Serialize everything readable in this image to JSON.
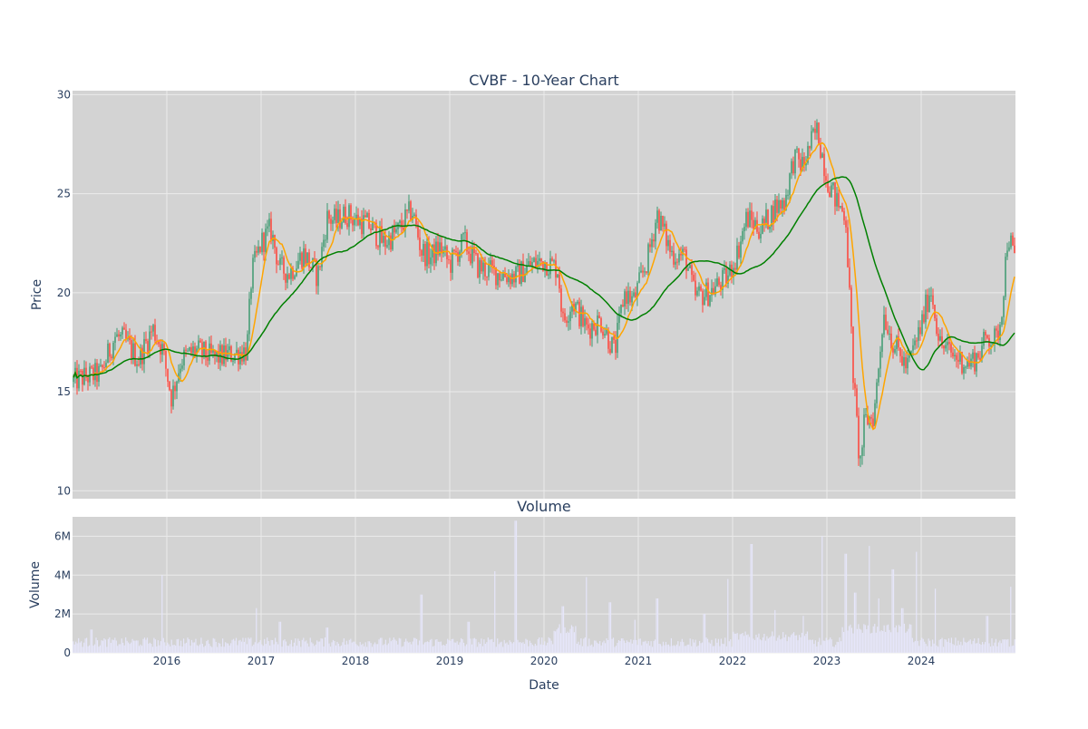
{
  "chart_data": {
    "type": "candlestick",
    "title": "CVBF - 10-Year Chart",
    "colors": {
      "background_plot": "#d3d3d3",
      "grid": "#ebebeb",
      "up_candle": "#3d9970",
      "down_candle": "#ff4136",
      "ma_short": "#ffa500",
      "ma_long": "#008000",
      "volume_bar": "#e6e6fa"
    },
    "price_panel": {
      "ylabel": "Price",
      "ylim": [
        9.6,
        30.2
      ],
      "yticks": [
        10,
        15,
        20,
        25,
        30
      ],
      "grid": true
    },
    "volume_panel": {
      "title": "Volume",
      "ylabel": "Volume",
      "ylim": [
        0,
        7000000
      ],
      "yticks": [
        0,
        2000000,
        4000000,
        6000000
      ],
      "yticklabels": [
        "0",
        "2M",
        "4M",
        "6M"
      ],
      "grid": true
    },
    "xaxis": {
      "xlabel": "Date",
      "range": [
        2015.0,
        2025.0
      ],
      "ticks": [
        2016,
        2017,
        2018,
        2019,
        2020,
        2021,
        2022,
        2023,
        2024
      ],
      "ticklabels": [
        "2016",
        "2017",
        "2018",
        "2019",
        "2020",
        "2021",
        "2022",
        "2023",
        "2024"
      ]
    },
    "close_keypoints": {
      "t": [
        2015.0,
        2015.1,
        2015.3,
        2015.45,
        2015.55,
        2015.7,
        2015.85,
        2015.95,
        2016.05,
        2016.15,
        2016.3,
        2016.5,
        2016.7,
        2016.85,
        2016.9,
        2017.0,
        2017.1,
        2017.2,
        2017.3,
        2017.45,
        2017.6,
        2017.7,
        2017.8,
        2017.9,
        2018.0,
        2018.15,
        2018.3,
        2018.45,
        2018.6,
        2018.7,
        2018.8,
        2018.9,
        2019.0,
        2019.15,
        2019.3,
        2019.5,
        2019.7,
        2019.85,
        2020.0,
        2020.15,
        2020.2,
        2020.3,
        2020.45,
        2020.6,
        2020.75,
        2020.85,
        2020.95,
        2021.1,
        2021.2,
        2021.35,
        2021.5,
        2021.6,
        2021.75,
        2021.95,
        2022.05,
        2022.15,
        2022.3,
        2022.45,
        2022.55,
        2022.65,
        2022.75,
        2022.85,
        2022.9,
        2023.0,
        2023.1,
        2023.2,
        2023.28,
        2023.35,
        2023.4,
        2023.5,
        2023.6,
        2023.7,
        2023.85,
        2024.0,
        2024.1,
        2024.2,
        2024.35,
        2024.5,
        2024.6,
        2024.7,
        2024.8,
        2024.85,
        2024.92,
        2025.0
      ],
      "close": [
        15.5,
        15.7,
        15.9,
        17.8,
        17.6,
        16.6,
        18.2,
        17.2,
        14.7,
        16.6,
        17.1,
        16.7,
        16.9,
        17.1,
        21.0,
        22.5,
        23.2,
        21.2,
        21.0,
        22.0,
        20.8,
        23.8,
        23.6,
        24.0,
        23.7,
        23.4,
        22.5,
        23.1,
        24.2,
        22.1,
        21.8,
        22.3,
        21.4,
        22.6,
        21.3,
        21.0,
        20.8,
        21.4,
        21.6,
        21.2,
        18.5,
        19.6,
        18.2,
        18.6,
        17.0,
        20.0,
        19.6,
        21.7,
        24.0,
        22.0,
        21.8,
        19.8,
        20.0,
        20.8,
        22.0,
        23.8,
        23.2,
        24.3,
        24.6,
        26.8,
        26.4,
        27.8,
        28.2,
        25.8,
        24.6,
        23.9,
        15.8,
        11.2,
        13.5,
        13.8,
        19.0,
        17.5,
        16.2,
        18.3,
        20.3,
        17.4,
        16.8,
        16.4,
        16.8,
        17.8,
        17.6,
        18.9,
        23.0,
        21.5
      ]
    },
    "volume_spikes": {
      "t": [
        2015.2,
        2015.95,
        2016.95,
        2017.2,
        2017.7,
        2018.7,
        2019.2,
        2019.48,
        2019.7,
        2020.2,
        2020.45,
        2020.7,
        2020.97,
        2021.2,
        2021.7,
        2021.95,
        2022.2,
        2022.45,
        2022.75,
        2022.95,
        2023.2,
        2023.3,
        2023.45,
        2023.55,
        2023.7,
        2023.8,
        2023.95,
        2024.15,
        2024.7,
        2024.95
      ],
      "volume": [
        1200000,
        4000000,
        2300000,
        1600000,
        1300000,
        3000000,
        1600000,
        4200000,
        6800000,
        2400000,
        3900000,
        2600000,
        1700000,
        2800000,
        2000000,
        3800000,
        5600000,
        2200000,
        1900000,
        6000000,
        5100000,
        3100000,
        5500000,
        2800000,
        4300000,
        2300000,
        5200000,
        3300000,
        1900000,
        3400000
      ]
    }
  }
}
